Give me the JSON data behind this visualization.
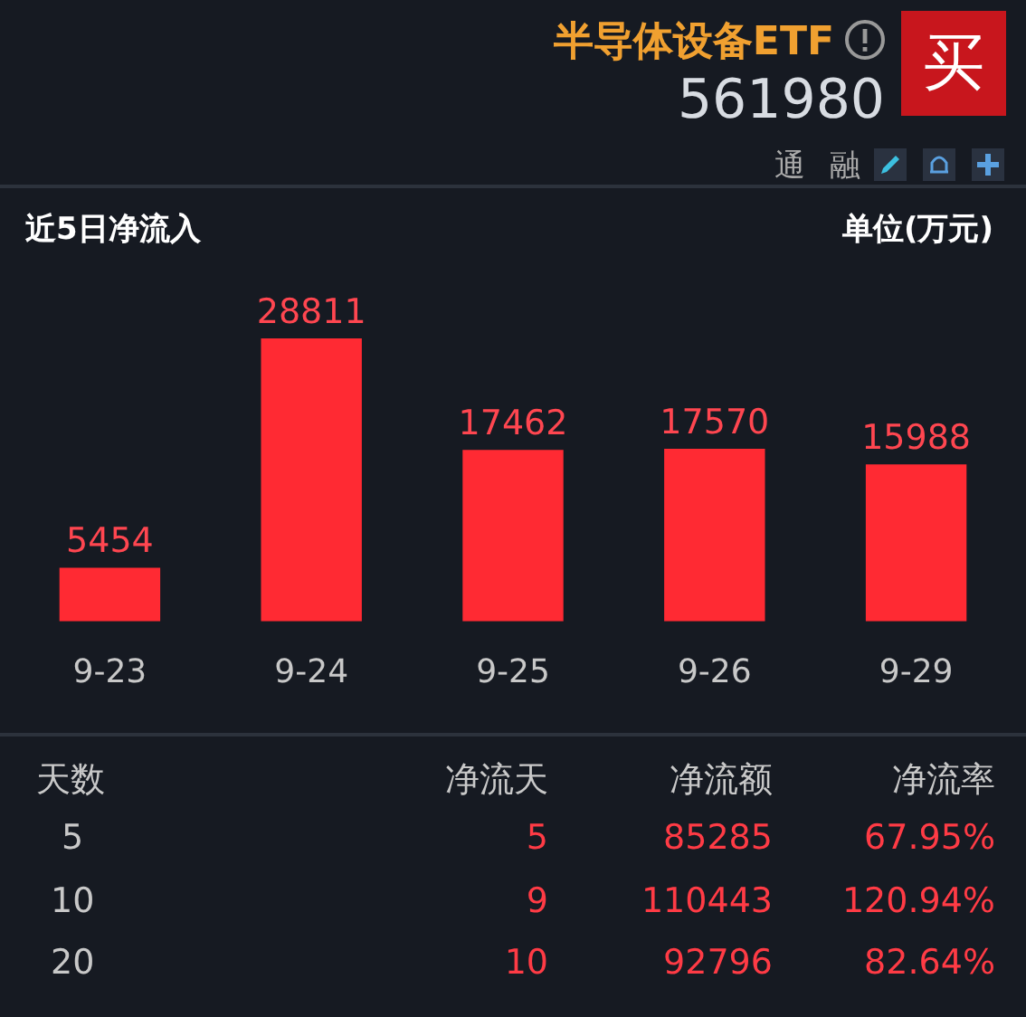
{
  "chart_data": {
    "type": "bar",
    "title": "近5日净流入",
    "ylabel": "单位(万元)",
    "categories": [
      "9-23",
      "9-24",
      "9-25",
      "9-26",
      "9-29"
    ],
    "values": [
      5454,
      28811,
      17462,
      17570,
      15988
    ],
    "color": "#ff2a33",
    "data_labels": true,
    "tick_labels": "x",
    "legend": false,
    "annotations": [
      "半导体设备ETF",
      "561980",
      "买",
      "通 融",
      "天数",
      "净流天",
      "净流额",
      "净流率",
      "5",
      "5",
      "85285",
      "67.95%",
      "10",
      "9",
      "110443",
      "120.94%",
      "20",
      "10",
      "92796",
      "82.64%"
    ]
  }
}
